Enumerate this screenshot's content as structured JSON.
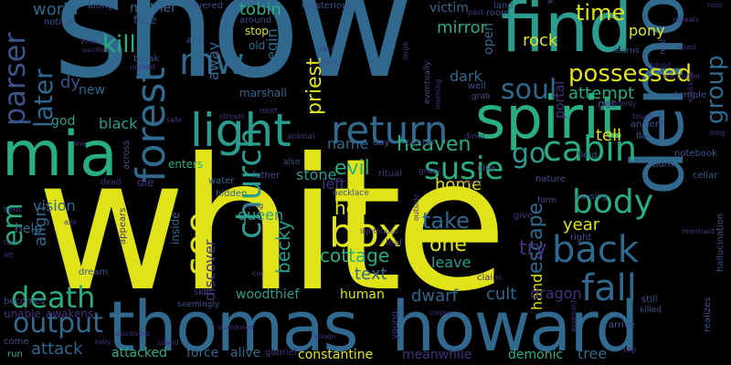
{
  "background": "#000000",
  "palette": {
    "yellow": "#dfe318",
    "teal": "#2a9d8f",
    "green": "#29af7f",
    "blue": "#31688e",
    "navy": "#3b528b",
    "indigo": "#46327e",
    "purple": "#482173",
    "lime": "#b5de2b"
  },
  "words": [
    {
      "id": "snow",
      "text": "snow"
    },
    {
      "id": "white",
      "text": "white"
    },
    {
      "id": "thomas",
      "text": "thomas"
    },
    {
      "id": "howard",
      "text": "howard"
    },
    {
      "id": "find",
      "text": "find"
    },
    {
      "id": "spirit",
      "text": "spirit"
    },
    {
      "id": "demon",
      "text": "demon"
    },
    {
      "id": "mia",
      "text": "mia"
    },
    {
      "id": "light",
      "text": "light"
    },
    {
      "id": "forest",
      "text": "forest"
    },
    {
      "id": "return",
      "text": "return"
    },
    {
      "id": "church",
      "text": "church"
    },
    {
      "id": "see",
      "text": "see"
    },
    {
      "id": "box",
      "text": "box"
    },
    {
      "id": "susie",
      "text": "susie"
    },
    {
      "id": "cabin",
      "text": "cabin"
    },
    {
      "id": "body",
      "text": "body"
    },
    {
      "id": "back",
      "text": "back"
    },
    {
      "id": "fall",
      "text": "fall"
    },
    {
      "id": "death",
      "text": "death"
    },
    {
      "id": "output",
      "text": "output"
    },
    {
      "id": "soul",
      "text": "soul"
    },
    {
      "id": "possessed",
      "text": "possessed"
    },
    {
      "id": "mw",
      "text": "mw"
    },
    {
      "id": "parser",
      "text": "parser"
    },
    {
      "id": "kill",
      "text": "kill"
    },
    {
      "id": "later",
      "text": "later"
    },
    {
      "id": "em",
      "text": "em"
    },
    {
      "id": "group",
      "text": "group"
    },
    {
      "id": "time",
      "text": "time"
    },
    {
      "id": "heaven",
      "text": "heaven"
    },
    {
      "id": "evil",
      "text": "evil"
    },
    {
      "id": "go",
      "text": "go"
    },
    {
      "id": "hell",
      "text": "hell"
    },
    {
      "id": "take",
      "text": "take"
    },
    {
      "id": "one",
      "text": "one"
    },
    {
      "id": "cottage",
      "text": "cottage"
    },
    {
      "id": "becky",
      "text": "becky"
    },
    {
      "id": "escape",
      "text": "escape"
    },
    {
      "id": "priest",
      "text": "priest"
    },
    {
      "id": "discover",
      "text": "discover"
    },
    {
      "id": "queen",
      "text": "queen"
    },
    {
      "id": "align",
      "text": "align"
    },
    {
      "id": "vision",
      "text": "vision"
    },
    {
      "id": "attack",
      "text": "attack"
    },
    {
      "id": "attacked",
      "text": "attacked"
    },
    {
      "id": "force",
      "text": "force"
    },
    {
      "id": "alive",
      "text": "alive"
    },
    {
      "id": "constantine",
      "text": "constantine"
    },
    {
      "id": "meanwhile",
      "text": "meanwhile"
    },
    {
      "id": "demonic",
      "text": "demonic"
    },
    {
      "id": "tree",
      "text": "tree"
    },
    {
      "id": "hand",
      "text": "hand"
    },
    {
      "id": "dwarf",
      "text": "dwarf"
    },
    {
      "id": "cult",
      "text": "cult"
    },
    {
      "id": "dragon",
      "text": "dragon"
    },
    {
      "id": "woodthief",
      "text": "woodthief"
    },
    {
      "id": "human",
      "text": "human"
    },
    {
      "id": "text",
      "text": "text"
    },
    {
      "id": "leave",
      "text": "leave"
    },
    {
      "id": "try",
      "text": "try"
    },
    {
      "id": "year",
      "text": "year"
    },
    {
      "id": "tell",
      "text": "tell"
    },
    {
      "id": "attempt",
      "text": "attempt"
    },
    {
      "id": "rock",
      "text": "rock"
    },
    {
      "id": "pony",
      "text": "pony"
    },
    {
      "id": "stone",
      "text": "stone"
    },
    {
      "id": "name",
      "text": "name"
    },
    {
      "id": "home",
      "text": "home"
    },
    {
      "id": "left",
      "text": "left"
    },
    {
      "id": "black",
      "text": "black"
    },
    {
      "id": "god",
      "text": "god"
    },
    {
      "id": "new",
      "text": "new"
    },
    {
      "id": "dy",
      "text": "dy"
    },
    {
      "id": "world",
      "text": "world"
    },
    {
      "id": "mother",
      "text": "mother"
    },
    {
      "id": "tobin",
      "text": "tobin"
    },
    {
      "id": "mirror",
      "text": "mirror"
    },
    {
      "id": "victim",
      "text": "victim"
    },
    {
      "id": "dark",
      "text": "dark"
    },
    {
      "id": "open",
      "text": "open"
    },
    {
      "id": "away",
      "text": "away"
    },
    {
      "id": "begin",
      "text": "begin"
    },
    {
      "id": "help",
      "text": "help"
    },
    {
      "id": "portal",
      "text": "portal"
    },
    {
      "id": "unable",
      "text": "unable"
    },
    {
      "id": "awakens",
      "text": "awakens"
    },
    {
      "id": "becomes",
      "text": "becomes"
    },
    {
      "id": "come",
      "text": "come"
    },
    {
      "id": "run",
      "text": "run"
    },
    {
      "id": "dream",
      "text": "dream"
    },
    {
      "id": "inside",
      "text": "inside"
    },
    {
      "id": "appears",
      "text": "appears"
    },
    {
      "id": "skin",
      "text": "skin"
    },
    {
      "id": "seemingly",
      "text": "seemingly"
    },
    {
      "id": "gabriel",
      "text": "gabriel"
    },
    {
      "id": "young",
      "text": "young"
    },
    {
      "id": "arrive",
      "text": "arrive"
    },
    {
      "id": "still",
      "text": "still"
    },
    {
      "id": "killed",
      "text": "killed"
    },
    {
      "id": "claim",
      "text": "claim"
    },
    {
      "id": "give",
      "text": "give"
    },
    {
      "id": "right",
      "text": "right"
    },
    {
      "id": "nature",
      "text": "nature"
    },
    {
      "id": "form",
      "text": "form"
    },
    {
      "id": "causing",
      "text": "causing"
    },
    {
      "id": "burn",
      "text": "burn"
    },
    {
      "id": "notebook",
      "text": "notebook"
    },
    {
      "id": "cellar",
      "text": "cellar"
    },
    {
      "id": "hallucination",
      "text": "hallucination"
    },
    {
      "id": "ritual",
      "text": "ritual"
    },
    {
      "id": "elsa",
      "text": "elsa"
    },
    {
      "id": "grass",
      "text": "grass"
    },
    {
      "id": "missing",
      "text": "missing"
    },
    {
      "id": "necklace",
      "text": "necklace"
    },
    {
      "id": "lighthouse",
      "text": "lighthouse"
    },
    {
      "id": "outside",
      "text": "outside"
    },
    {
      "id": "leaf",
      "text": "leaf"
    },
    {
      "id": "water",
      "text": "water"
    },
    {
      "id": "father",
      "text": "father"
    },
    {
      "id": "enters",
      "text": "enters"
    },
    {
      "id": "hidden",
      "text": "hidden"
    },
    {
      "id": "center",
      "text": "center"
    },
    {
      "id": "day",
      "text": "day"
    },
    {
      "id": "also",
      "text": "also"
    },
    {
      "id": "animal",
      "text": "animal"
    },
    {
      "id": "diner",
      "text": "diner"
    },
    {
      "id": "next",
      "text": "next"
    },
    {
      "id": "stream",
      "text": "stream"
    },
    {
      "id": "marshall",
      "text": "marshall"
    },
    {
      "id": "dam",
      "text": "dam"
    },
    {
      "id": "rest",
      "text": "rest"
    },
    {
      "id": "stop",
      "text": "stop"
    },
    {
      "id": "old",
      "text": "old"
    },
    {
      "id": "around",
      "text": "around"
    },
    {
      "id": "covered",
      "text": "covered"
    },
    {
      "id": "mysterious",
      "text": "mysterious"
    },
    {
      "id": "face",
      "text": "face"
    },
    {
      "id": "along",
      "text": "along"
    },
    {
      "id": "notice",
      "text": "notice"
    },
    {
      "id": "arm",
      "text": "arm"
    },
    {
      "id": "break",
      "text": "break"
    },
    {
      "id": "named",
      "text": "named"
    },
    {
      "id": "vine",
      "text": "vine"
    },
    {
      "id": "sacrifice",
      "text": "sacrifice"
    },
    {
      "id": "safe",
      "text": "safe"
    },
    {
      "id": "sent",
      "text": "sent"
    },
    {
      "id": "turn",
      "text": "turn"
    },
    {
      "id": "let",
      "text": "let"
    },
    {
      "id": "eventually",
      "text": "eventually"
    },
    {
      "id": "morning",
      "text": "morning"
    },
    {
      "id": "large",
      "text": "large"
    },
    {
      "id": "past",
      "text": "past"
    },
    {
      "id": "land",
      "text": "land"
    },
    {
      "id": "room",
      "text": "room"
    },
    {
      "id": "way",
      "text": "way"
    },
    {
      "id": "real",
      "text": "real"
    },
    {
      "id": "reveals",
      "text": "reveals"
    },
    {
      "id": "encounter",
      "text": "encounter"
    },
    {
      "id": "temple",
      "text": "temple"
    },
    {
      "id": "explains",
      "text": "explains"
    },
    {
      "id": "ross",
      "text": "ross"
    },
    {
      "id": "learns",
      "text": "learns"
    },
    {
      "id": "blood",
      "text": "blood"
    },
    {
      "id": "used",
      "text": "used"
    },
    {
      "id": "well",
      "text": "well"
    },
    {
      "id": "grab",
      "text": "grab"
    },
    {
      "id": "get",
      "text": "get"
    },
    {
      "id": "suddenly",
      "text": "suddenly"
    },
    {
      "id": "touch",
      "text": "touch"
    },
    {
      "id": "ancient",
      "text": "ancient"
    },
    {
      "id": "flee",
      "text": "flee"
    },
    {
      "id": "long",
      "text": "long"
    },
    {
      "id": "field",
      "text": "field"
    },
    {
      "id": "top",
      "text": "top"
    },
    {
      "id": "approach",
      "text": "approach"
    },
    {
      "id": "mermaid",
      "text": "mermaid"
    },
    {
      "id": "realizes",
      "text": "realizes"
    },
    {
      "id": "across",
      "text": "across"
    },
    {
      "id": "dead",
      "text": "dead"
    },
    {
      "id": "die",
      "text": "die"
    },
    {
      "id": "axe",
      "text": "axe"
    },
    {
      "id": "car",
      "text": "car"
    },
    {
      "id": "dying",
      "text": "dying"
    },
    {
      "id": "island",
      "text": "island"
    },
    {
      "id": "abandoned",
      "text": "abandoned"
    },
    {
      "id": "discovers",
      "text": "discovers"
    },
    {
      "id": "baby",
      "text": "baby"
    },
    {
      "id": "village",
      "text": "village"
    },
    {
      "id": "corpse",
      "text": "corpse"
    },
    {
      "id": "line",
      "text": "line"
    }
  ]
}
